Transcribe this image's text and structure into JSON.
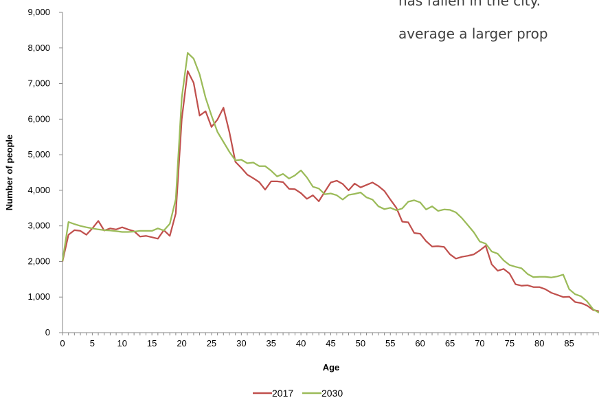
{
  "overlay_text": [
    "has fallen in the city.",
    "average a larger prop"
  ],
  "chart_data": {
    "type": "line",
    "xlabel": "Age",
    "ylabel": "Number of people",
    "xlim": [
      0,
      90
    ],
    "ylim": [
      0,
      9000
    ],
    "x_ticks": [
      "0",
      "5",
      "10",
      "15",
      "20",
      "25",
      "30",
      "35",
      "40",
      "45",
      "50",
      "55",
      "60",
      "65",
      "70",
      "75",
      "80",
      "85"
    ],
    "y_ticks": [
      "0",
      "1,000",
      "2,000",
      "3,000",
      "4,000",
      "5,000",
      "6,000",
      "7,000",
      "8,000",
      "9,000"
    ],
    "grid": false,
    "legend_position": "bottom",
    "x": [
      0,
      1,
      2,
      3,
      4,
      5,
      6,
      7,
      8,
      9,
      10,
      11,
      12,
      13,
      14,
      15,
      16,
      17,
      18,
      19,
      20,
      21,
      22,
      23,
      24,
      25,
      26,
      27,
      28,
      29,
      30,
      31,
      32,
      33,
      34,
      35,
      36,
      37,
      38,
      39,
      40,
      41,
      42,
      43,
      44,
      45,
      46,
      47,
      48,
      49,
      50,
      51,
      52,
      53,
      54,
      55,
      56,
      57,
      58,
      59,
      60,
      61,
      62,
      63,
      64,
      65,
      66,
      67,
      68,
      69,
      70,
      71,
      72,
      73,
      74,
      75,
      76,
      77,
      78,
      79,
      80,
      81,
      82,
      83,
      84,
      85,
      86,
      87,
      88,
      89,
      90
    ],
    "series": [
      {
        "name": "2017",
        "color": "#c0504d",
        "values": [
          2000,
          2750,
          2880,
          2860,
          2750,
          2930,
          3140,
          2870,
          2930,
          2900,
          2960,
          2900,
          2850,
          2700,
          2720,
          2680,
          2640,
          2880,
          2720,
          3350,
          6000,
          7350,
          7020,
          6100,
          6220,
          5780,
          5990,
          6320,
          5630,
          4800,
          4630,
          4440,
          4340,
          4230,
          4020,
          4250,
          4250,
          4230,
          4040,
          4030,
          3920,
          3760,
          3860,
          3690,
          3960,
          4220,
          4270,
          4180,
          4000,
          4190,
          4080,
          4150,
          4220,
          4120,
          3980,
          3740,
          3510,
          3120,
          3100,
          2800,
          2780,
          2570,
          2420,
          2430,
          2410,
          2200,
          2080,
          2130,
          2160,
          2200,
          2310,
          2440,
          1920,
          1740,
          1790,
          1660,
          1360,
          1320,
          1330,
          1280,
          1280,
          1220,
          1120,
          1060,
          1000,
          1010,
          860,
          830,
          760,
          640,
          600
        ]
      },
      {
        "name": "2030",
        "color": "#9bbb59",
        "values": [
          2010,
          3110,
          3050,
          3000,
          2960,
          2930,
          2900,
          2880,
          2870,
          2850,
          2830,
          2830,
          2840,
          2860,
          2860,
          2860,
          2930,
          2870,
          3060,
          3750,
          6600,
          7860,
          7700,
          7260,
          6600,
          6100,
          5640,
          5360,
          5080,
          4840,
          4860,
          4760,
          4780,
          4680,
          4680,
          4550,
          4390,
          4460,
          4330,
          4420,
          4560,
          4360,
          4100,
          4050,
          3890,
          3910,
          3860,
          3740,
          3870,
          3900,
          3940,
          3800,
          3740,
          3550,
          3470,
          3510,
          3440,
          3490,
          3680,
          3720,
          3660,
          3460,
          3550,
          3420,
          3460,
          3450,
          3380,
          3220,
          3020,
          2820,
          2560,
          2500,
          2280,
          2220,
          2030,
          1900,
          1850,
          1810,
          1650,
          1560,
          1570,
          1570,
          1550,
          1580,
          1630,
          1220,
          1080,
          1020,
          880,
          660,
          560
        ]
      }
    ]
  }
}
